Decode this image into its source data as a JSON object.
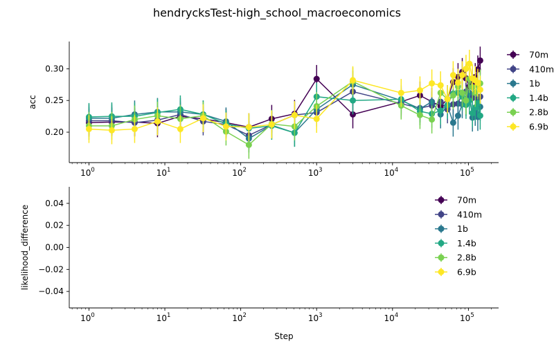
{
  "figure": {
    "title": "hendrycksTest-high_school_macroeconomics"
  },
  "chart_data": [
    {
      "type": "line",
      "panel": "top",
      "title": "hendrycksTest-high_school_macroeconomics",
      "xlabel": "",
      "ylabel": "acc",
      "xscale": "log",
      "xlim": [
        0.55,
        250000
      ],
      "ylim": [
        0.152,
        0.343
      ],
      "yticks": [
        0.2,
        0.25,
        0.3
      ],
      "ytick_labels": [
        "0.20",
        "0.25",
        "0.30"
      ],
      "xticks": [
        1,
        10,
        100,
        1000,
        10000,
        100000
      ],
      "xtick_labels": [
        {
          "base": "10",
          "exp": "0"
        },
        {
          "base": "10",
          "exp": "1"
        },
        {
          "base": "10",
          "exp": "2"
        },
        {
          "base": "10",
          "exp": "3"
        },
        {
          "base": "10",
          "exp": "4"
        },
        {
          "base": "10",
          "exp": "5"
        }
      ],
      "grid": false,
      "legend_position": "right",
      "x": [
        1,
        2,
        4,
        8,
        16,
        32,
        64,
        128,
        256,
        512,
        1000,
        3000,
        13000,
        23000,
        33000,
        43000,
        53000,
        63000,
        73000,
        83000,
        93000,
        103000,
        113000,
        123000,
        133000,
        143000
      ],
      "series": [
        {
          "name": "70m",
          "color": "#440154",
          "y": [
            0.215,
            0.216,
            0.216,
            0.214,
            0.225,
            0.221,
            0.215,
            0.208,
            0.221,
            0.229,
            0.284,
            0.228,
            0.248,
            0.258,
            0.248,
            0.241,
            0.252,
            0.279,
            0.287,
            0.295,
            0.285,
            0.272,
            0.278,
            0.287,
            0.299,
            0.313
          ],
          "err": 0.022
        },
        {
          "name": "410m",
          "color": "#414487",
          "y": [
            0.218,
            0.218,
            0.215,
            0.219,
            0.228,
            0.217,
            0.212,
            0.195,
            0.212,
            0.227,
            0.231,
            0.264,
            0.245,
            0.238,
            0.242,
            0.248,
            0.236,
            0.244,
            0.245,
            0.262,
            0.264,
            0.258,
            0.254,
            0.262,
            0.252,
            0.256
          ],
          "err": 0.022
        },
        {
          "name": "1b",
          "color": "#2a788e",
          "y": [
            0.222,
            0.222,
            0.228,
            0.232,
            0.232,
            0.228,
            0.217,
            0.19,
            0.211,
            0.199,
            0.236,
            0.275,
            0.25,
            0.237,
            0.248,
            0.228,
            0.242,
            0.215,
            0.226,
            0.244,
            0.248,
            0.262,
            0.223,
            0.232,
            0.224,
            0.24
          ],
          "err": 0.022
        },
        {
          "name": "1.4b",
          "color": "#22a884",
          "y": [
            0.224,
            0.225,
            0.225,
            0.231,
            0.236,
            0.228,
            0.213,
            0.206,
            0.21,
            0.199,
            0.256,
            0.25,
            0.252,
            0.233,
            0.229,
            0.234,
            0.243,
            0.261,
            0.262,
            0.256,
            0.243,
            0.25,
            0.23,
            0.239,
            0.246,
            0.226
          ],
          "err": 0.022
        },
        {
          "name": "2.8b",
          "color": "#7ad151",
          "y": [
            0.21,
            0.21,
            0.22,
            0.226,
            0.221,
            0.226,
            0.201,
            0.18,
            0.213,
            0.209,
            0.241,
            0.28,
            0.242,
            0.227,
            0.22,
            0.262,
            0.252,
            0.258,
            0.272,
            0.262,
            0.25,
            0.284,
            0.271,
            0.262,
            0.274,
            0.277
          ],
          "err": 0.022
        },
        {
          "name": "6.9b",
          "color": "#fde725",
          "y": [
            0.205,
            0.203,
            0.205,
            0.217,
            0.205,
            0.222,
            0.209,
            0.208,
            0.212,
            0.227,
            0.221,
            0.282,
            0.262,
            0.266,
            0.277,
            0.274,
            0.252,
            0.29,
            0.278,
            0.29,
            0.3,
            0.308,
            0.285,
            0.282,
            0.278,
            0.267
          ],
          "err": 0.022
        }
      ]
    },
    {
      "type": "line",
      "panel": "bottom",
      "xlabel": "Step",
      "ylabel": "likelihood_difference",
      "xscale": "log",
      "xlim": [
        0.55,
        250000
      ],
      "ylim": [
        -0.055,
        0.055
      ],
      "yticks": [
        -0.04,
        -0.02,
        0.0,
        0.02,
        0.04
      ],
      "ytick_labels": [
        "−0.04",
        "−0.02",
        "0.00",
        "0.02",
        "0.04"
      ],
      "xticks": [
        1,
        10,
        100,
        1000,
        10000,
        100000
      ],
      "xtick_labels": [
        {
          "base": "10",
          "exp": "0"
        },
        {
          "base": "10",
          "exp": "1"
        },
        {
          "base": "10",
          "exp": "2"
        },
        {
          "base": "10",
          "exp": "3"
        },
        {
          "base": "10",
          "exp": "4"
        },
        {
          "base": "10",
          "exp": "5"
        }
      ],
      "grid": false,
      "legend_position": "upper-right",
      "series": [
        {
          "name": "70m",
          "color": "#440154",
          "y": []
        },
        {
          "name": "410m",
          "color": "#414487",
          "y": []
        },
        {
          "name": "1b",
          "color": "#2a788e",
          "y": []
        },
        {
          "name": "1.4b",
          "color": "#22a884",
          "y": []
        },
        {
          "name": "2.8b",
          "color": "#7ad151",
          "y": []
        },
        {
          "name": "6.9b",
          "color": "#fde725",
          "y": []
        }
      ]
    }
  ]
}
